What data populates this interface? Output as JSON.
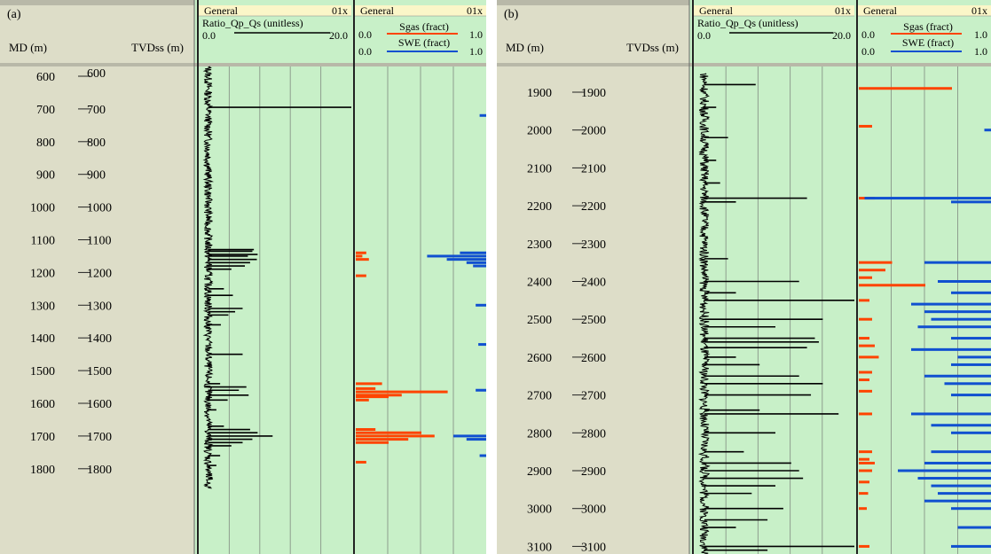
{
  "colors": {
    "header_bg": "#ddddc8",
    "depth_bg": "#ddddc8",
    "track_bg": "#c8f0c8",
    "track_header_bg": "#c8f0c8",
    "title_bg": "#fbf6c8",
    "grid": "#8e9e8e",
    "ratio_line": "#000000",
    "sgas_line": "#ff4400",
    "swe_line": "#1050d0"
  },
  "chart_data": [
    {
      "type": "line",
      "panel_label": "(a)",
      "md_label": "MD (m)",
      "tvd_label": "TVDss (m)",
      "depth_range": [
        570,
        1860
      ],
      "md_ticks": [
        "600",
        "700",
        "800",
        "900",
        "1000",
        "1100",
        "1200",
        "1300",
        "1400",
        "1500",
        "1600",
        "1700",
        "1800"
      ],
      "tvd_ticks": [
        "600",
        "700",
        "800",
        "900",
        "1000",
        "1100",
        "1200",
        "1300",
        "1400",
        "1500",
        "1600",
        "1700",
        "1800"
      ],
      "track1": {
        "title": "General",
        "scale_code": "01x",
        "curve_name": "Ratio_Qp_Qs (unitless)",
        "xmin": "0.0",
        "xmax": "20.0",
        "series": {
          "name": "Ratio_Qp_Qs",
          "base": 0.9,
          "spikes": [
            [
              695,
              20
            ],
            [
              1130,
              7
            ],
            [
              1135,
              6.8
            ],
            [
              1145,
              7.5
            ],
            [
              1150,
              6.2
            ],
            [
              1160,
              7.4
            ],
            [
              1170,
              6.5
            ],
            [
              1180,
              5.8
            ],
            [
              1190,
              4
            ],
            [
              1250,
              3
            ],
            [
              1270,
              4.2
            ],
            [
              1310,
              5.5
            ],
            [
              1320,
              4.5
            ],
            [
              1330,
              3.6
            ],
            [
              1360,
              2.6
            ],
            [
              1450,
              5.5
            ],
            [
              1540,
              2.5
            ],
            [
              1550,
              6
            ],
            [
              1560,
              5
            ],
            [
              1575,
              6.3
            ],
            [
              1590,
              3.5
            ],
            [
              1620,
              2
            ],
            [
              1670,
              3
            ],
            [
              1680,
              6.5
            ],
            [
              1690,
              7.5
            ],
            [
              1700,
              9.5
            ],
            [
              1710,
              6.8
            ],
            [
              1720,
              5.5
            ],
            [
              1730,
              4
            ],
            [
              1760,
              2.5
            ],
            [
              1790,
              2
            ],
            [
              1830,
              1.5
            ]
          ]
        }
      },
      "track2": {
        "title": "General",
        "scale_code": "01x",
        "curves": [
          {
            "name": "Sgas (fract)",
            "xmin": "0.0",
            "xmax": "1.0"
          },
          {
            "name": "SWE (fract)",
            "xmin": "0.0",
            "xmax": "1.0"
          }
        ],
        "sgas": [
          [
            1140,
            0.08
          ],
          [
            1150,
            0.05
          ],
          [
            1160,
            0.1
          ],
          [
            1210,
            0.08
          ],
          [
            1540,
            0.2
          ],
          [
            1555,
            0.15
          ],
          [
            1565,
            0.7
          ],
          [
            1575,
            0.35
          ],
          [
            1580,
            0.25
          ],
          [
            1590,
            0.1
          ],
          [
            1680,
            0.15
          ],
          [
            1690,
            0.5
          ],
          [
            1700,
            0.6
          ],
          [
            1710,
            0.4
          ],
          [
            1720,
            0.25
          ],
          [
            1780,
            0.08
          ]
        ],
        "swe": [
          [
            720,
            0.05
          ],
          [
            1140,
            0.2
          ],
          [
            1150,
            0.45
          ],
          [
            1160,
            0.3
          ],
          [
            1170,
            0.15
          ],
          [
            1180,
            0.1
          ],
          [
            1300,
            0.08
          ],
          [
            1420,
            0.06
          ],
          [
            1560,
            0.08
          ],
          [
            1700,
            0.25
          ],
          [
            1710,
            0.15
          ],
          [
            1760,
            0.05
          ]
        ]
      }
    },
    {
      "type": "line",
      "panel_label": "(b)",
      "md_label": "MD (m)",
      "tvd_label": "TVDss (m)",
      "depth_range": [
        1850,
        3130
      ],
      "md_ticks": [
        "1900",
        "2000",
        "2100",
        "2200",
        "2300",
        "2400",
        "2500",
        "2600",
        "2700",
        "2800",
        "2900",
        "3000",
        "3100"
      ],
      "tvd_ticks": [
        "1900",
        "2000",
        "2100",
        "2200",
        "2300",
        "2400",
        "2500",
        "2600",
        "2700",
        "2800",
        "2900",
        "3000",
        "3100"
      ],
      "track1": {
        "title": "General",
        "scale_code": "01x",
        "curve_name": "Ratio_Qp_Qs (unitless)",
        "xmin": "0.0",
        "xmax": "20.0",
        "series": {
          "name": "Ratio_Qp_Qs",
          "base": 1.0,
          "spikes": [
            [
              1880,
              7.5
            ],
            [
              1940,
              2.5
            ],
            [
              2020,
              4
            ],
            [
              2080,
              2.5
            ],
            [
              2140,
              3
            ],
            [
              2180,
              14
            ],
            [
              2190,
              5
            ],
            [
              2340,
              4
            ],
            [
              2400,
              13
            ],
            [
              2430,
              5
            ],
            [
              2450,
              20
            ],
            [
              2500,
              16
            ],
            [
              2520,
              10
            ],
            [
              2550,
              15
            ],
            [
              2560,
              15.5
            ],
            [
              2575,
              14
            ],
            [
              2600,
              5
            ],
            [
              2620,
              8
            ],
            [
              2650,
              13
            ],
            [
              2670,
              16
            ],
            [
              2700,
              14.5
            ],
            [
              2740,
              8
            ],
            [
              2750,
              18
            ],
            [
              2800,
              10
            ],
            [
              2850,
              6
            ],
            [
              2880,
              12
            ],
            [
              2900,
              13
            ],
            [
              2920,
              13.5
            ],
            [
              2940,
              10
            ],
            [
              2960,
              7
            ],
            [
              3000,
              11
            ],
            [
              3030,
              9
            ],
            [
              3050,
              5
            ],
            [
              3100,
              20
            ],
            [
              3110,
              9
            ]
          ]
        }
      },
      "track2": {
        "title": "General",
        "scale_code": "01x",
        "curves": [
          {
            "name": "Sgas (fract)",
            "xmin": "0.0",
            "xmax": "1.0"
          },
          {
            "name": "SWE (fract)",
            "xmin": "0.0",
            "xmax": "1.0"
          }
        ],
        "sgas": [
          [
            1890,
            0.7
          ],
          [
            1990,
            0.1
          ],
          [
            2180,
            0.12
          ],
          [
            2350,
            0.25
          ],
          [
            2370,
            0.2
          ],
          [
            2390,
            0.1
          ],
          [
            2410,
            0.5
          ],
          [
            2450,
            0.08
          ],
          [
            2500,
            0.1
          ],
          [
            2550,
            0.08
          ],
          [
            2570,
            0.12
          ],
          [
            2600,
            0.15
          ],
          [
            2640,
            0.1
          ],
          [
            2660,
            0.08
          ],
          [
            2690,
            0.1
          ],
          [
            2750,
            0.1
          ],
          [
            2850,
            0.1
          ],
          [
            2870,
            0.08
          ],
          [
            2880,
            0.12
          ],
          [
            2900,
            0.1
          ],
          [
            2930,
            0.08
          ],
          [
            2960,
            0.07
          ],
          [
            3000,
            0.06
          ],
          [
            3100,
            0.08
          ]
        ],
        "swe": [
          [
            2000,
            0.05
          ],
          [
            2180,
            0.95
          ],
          [
            2190,
            0.3
          ],
          [
            2350,
            0.5
          ],
          [
            2400,
            0.4
          ],
          [
            2430,
            0.3
          ],
          [
            2460,
            0.6
          ],
          [
            2480,
            0.5
          ],
          [
            2500,
            0.45
          ],
          [
            2520,
            0.55
          ],
          [
            2550,
            0.3
          ],
          [
            2580,
            0.6
          ],
          [
            2600,
            0.25
          ],
          [
            2620,
            0.3
          ],
          [
            2650,
            0.5
          ],
          [
            2670,
            0.35
          ],
          [
            2700,
            0.3
          ],
          [
            2750,
            0.6
          ],
          [
            2780,
            0.45
          ],
          [
            2800,
            0.3
          ],
          [
            2850,
            0.45
          ],
          [
            2880,
            0.5
          ],
          [
            2900,
            0.7
          ],
          [
            2920,
            0.55
          ],
          [
            2940,
            0.45
          ],
          [
            2960,
            0.4
          ],
          [
            2980,
            0.5
          ],
          [
            3000,
            0.3
          ],
          [
            3050,
            0.25
          ],
          [
            3100,
            0.3
          ]
        ]
      }
    }
  ]
}
